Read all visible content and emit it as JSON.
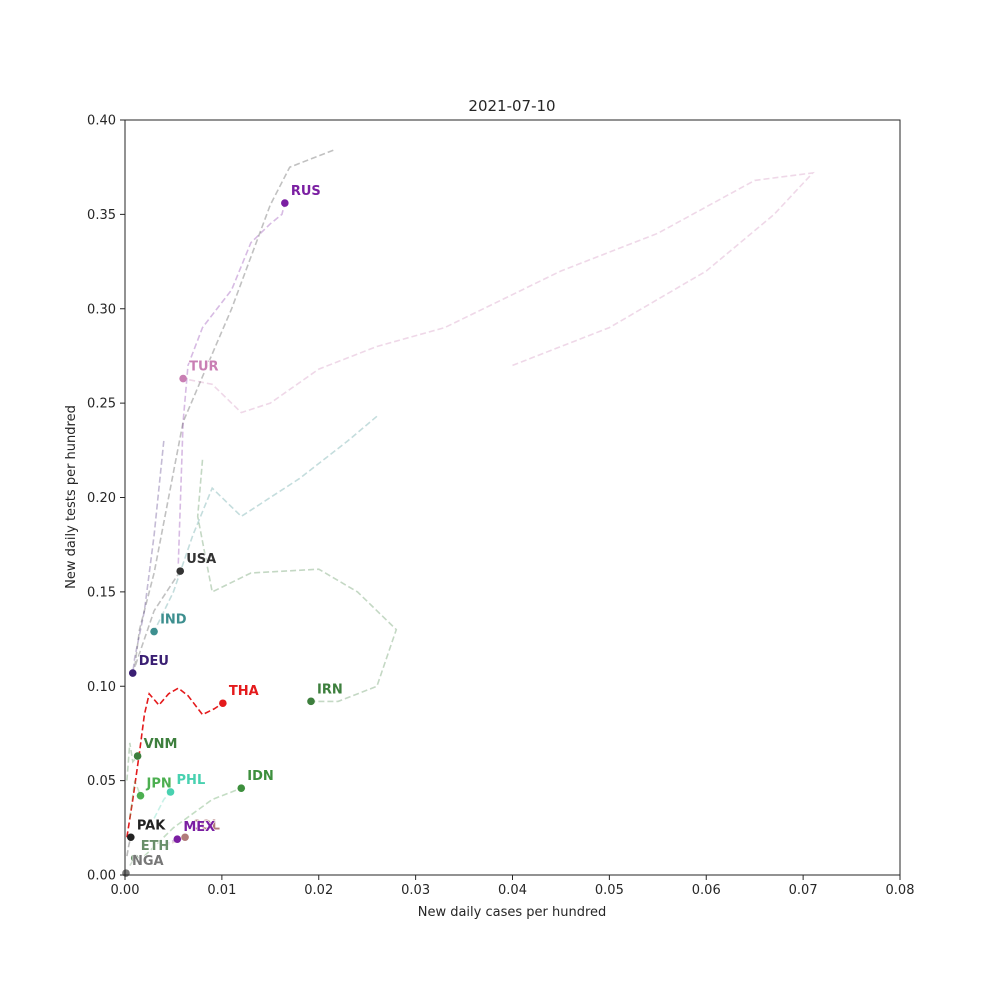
{
  "chart_data": {
    "type": "line",
    "title": "2021-07-10",
    "xlabel": "New daily cases per hundred",
    "ylabel": "New daily tests per hundred",
    "xlim": [
      0,
      0.08
    ],
    "ylim": [
      0,
      0.4
    ],
    "x_ticks": [
      "0.00",
      "0.01",
      "0.02",
      "0.03",
      "0.04",
      "0.05",
      "0.06",
      "0.07",
      "0.08"
    ],
    "y_ticks": [
      "0.00",
      "0.05",
      "0.10",
      "0.15",
      "0.20",
      "0.25",
      "0.30",
      "0.35",
      "0.40"
    ],
    "grid": false,
    "series": [
      {
        "name": "RUS",
        "color": "#7b1fa2",
        "point": [
          0.0165,
          0.356
        ],
        "trail": [
          [
            0.0055,
            0.165
          ],
          [
            0.006,
            0.24
          ],
          [
            0.0065,
            0.27
          ],
          [
            0.008,
            0.29
          ],
          [
            0.011,
            0.31
          ],
          [
            0.013,
            0.335
          ],
          [
            0.015,
            0.345
          ],
          [
            0.0162,
            0.35
          ],
          [
            0.0165,
            0.356
          ]
        ]
      },
      {
        "name": "TUR",
        "color": "#c97fb4",
        "point": [
          0.006,
          0.263
        ],
        "trail": [
          [
            0.04,
            0.27
          ],
          [
            0.05,
            0.29
          ],
          [
            0.06,
            0.32
          ],
          [
            0.067,
            0.35
          ],
          [
            0.071,
            0.372
          ],
          [
            0.065,
            0.368
          ],
          [
            0.055,
            0.34
          ],
          [
            0.045,
            0.32
          ],
          [
            0.033,
            0.29
          ],
          [
            0.026,
            0.28
          ],
          [
            0.02,
            0.268
          ],
          [
            0.015,
            0.25
          ],
          [
            0.012,
            0.245
          ],
          [
            0.009,
            0.26
          ],
          [
            0.006,
            0.263
          ]
        ]
      },
      {
        "name": "USA",
        "color": "#333333",
        "point": [
          0.0057,
          0.161
        ],
        "trail": [
          [
            0.0215,
            0.384
          ],
          [
            0.017,
            0.375
          ],
          [
            0.015,
            0.355
          ],
          [
            0.011,
            0.3
          ],
          [
            0.0085,
            0.27
          ],
          [
            0.006,
            0.24
          ],
          [
            0.0045,
            0.2
          ],
          [
            0.003,
            0.16
          ],
          [
            0.0015,
            0.13
          ],
          [
            0.001,
            0.11
          ],
          [
            0.003,
            0.14
          ],
          [
            0.0057,
            0.161
          ]
        ]
      },
      {
        "name": "IND",
        "color": "#3d8f8f",
        "point": [
          0.003,
          0.129
        ],
        "trail": [
          [
            0.026,
            0.243
          ],
          [
            0.023,
            0.23
          ],
          [
            0.018,
            0.21
          ],
          [
            0.015,
            0.2
          ],
          [
            0.012,
            0.19
          ],
          [
            0.009,
            0.205
          ],
          [
            0.007,
            0.18
          ],
          [
            0.005,
            0.15
          ],
          [
            0.003,
            0.129
          ]
        ]
      },
      {
        "name": "DEU",
        "color": "#3a1f73",
        "point": [
          0.0008,
          0.107
        ],
        "trail": [
          [
            0.004,
            0.23
          ],
          [
            0.003,
            0.18
          ],
          [
            0.002,
            0.14
          ],
          [
            0.001,
            0.115
          ],
          [
            0.0008,
            0.107
          ]
        ]
      },
      {
        "name": "THA",
        "color": "#e41a1c",
        "point": [
          0.0101,
          0.091
        ],
        "trail": [
          [
            0.0002,
            0.02
          ],
          [
            0.0008,
            0.04
          ],
          [
            0.0015,
            0.065
          ],
          [
            0.002,
            0.085
          ],
          [
            0.0025,
            0.096
          ],
          [
            0.0035,
            0.09
          ],
          [
            0.0045,
            0.096
          ],
          [
            0.0055,
            0.099
          ],
          [
            0.0065,
            0.095
          ],
          [
            0.008,
            0.085
          ],
          [
            0.0092,
            0.088
          ],
          [
            0.0101,
            0.091
          ]
        ]
      },
      {
        "name": "IRN",
        "color": "#3d7f3d",
        "point": [
          0.0192,
          0.092
        ],
        "trail": [
          [
            0.008,
            0.22
          ],
          [
            0.0075,
            0.19
          ],
          [
            0.009,
            0.15
          ],
          [
            0.013,
            0.16
          ],
          [
            0.02,
            0.162
          ],
          [
            0.024,
            0.15
          ],
          [
            0.028,
            0.13
          ],
          [
            0.026,
            0.1
          ],
          [
            0.022,
            0.092
          ],
          [
            0.0192,
            0.092
          ]
        ]
      },
      {
        "name": "VNM",
        "color": "#3d7f3d",
        "point": [
          0.0013,
          0.063
        ],
        "trail": [
          [
            0.0002,
            0.05
          ],
          [
            0.0005,
            0.07
          ],
          [
            0.0008,
            0.06
          ],
          [
            0.0013,
            0.063
          ]
        ]
      },
      {
        "name": "JPN",
        "color": "#4caf50",
        "point": [
          0.0016,
          0.042
        ],
        "trail": [
          [
            0.0005,
            0.03
          ],
          [
            0.001,
            0.05
          ],
          [
            0.0016,
            0.042
          ]
        ]
      },
      {
        "name": "PHL",
        "color": "#48d1b0",
        "point": [
          0.0047,
          0.044
        ],
        "trail": [
          [
            0.003,
            0.03
          ],
          [
            0.004,
            0.04
          ],
          [
            0.0047,
            0.044
          ]
        ]
      },
      {
        "name": "IDN",
        "color": "#3d8f3d",
        "point": [
          0.012,
          0.046
        ],
        "trail": [
          [
            0.002,
            0.01
          ],
          [
            0.005,
            0.025
          ],
          [
            0.009,
            0.04
          ],
          [
            0.012,
            0.046
          ]
        ]
      },
      {
        "name": "PAK",
        "color": "#222222",
        "point": [
          0.0006,
          0.02
        ],
        "trail": [
          [
            0.0002,
            0.01
          ],
          [
            0.0004,
            0.016
          ],
          [
            0.0006,
            0.02
          ]
        ]
      },
      {
        "name": "COL",
        "color": "#b07a7a",
        "point": [
          0.0062,
          0.02
        ],
        "trail": [
          [
            0.004,
            0.015
          ],
          [
            0.0062,
            0.02
          ]
        ]
      },
      {
        "name": "MEX",
        "color": "#7b1fa2",
        "point": [
          0.0054,
          0.019
        ],
        "trail": [
          [
            0.004,
            0.016
          ],
          [
            0.0054,
            0.019
          ]
        ]
      },
      {
        "name": "ETH",
        "color": "#6a8f6a",
        "point": [
          0.001,
          0.009
        ],
        "trail": [
          [
            0.0005,
            0.005
          ],
          [
            0.001,
            0.009
          ]
        ]
      },
      {
        "name": "NGA",
        "color": "#777777",
        "point": [
          0.0001,
          0.001
        ],
        "trail": [
          [
            0.0,
            0.0
          ],
          [
            0.0001,
            0.001
          ]
        ]
      }
    ]
  }
}
